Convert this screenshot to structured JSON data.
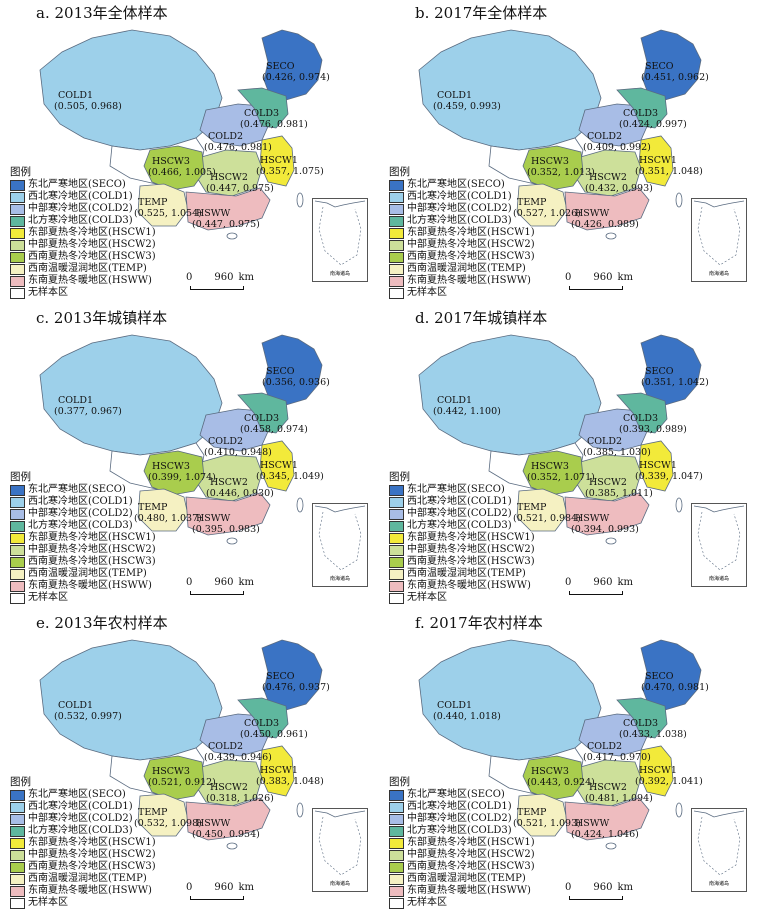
{
  "legend_title": "图例",
  "legend_items": [
    {
      "code": "SECO",
      "label": "东北严寒地区(SECO)",
      "color": "#3a73c4"
    },
    {
      "code": "COLD1",
      "label": "西北寒冷地区(COLD1)",
      "color": "#9dd0ea"
    },
    {
      "code": "COLD2",
      "label": "中部寒冷地区(COLD2)",
      "color": "#a8bde6"
    },
    {
      "code": "COLD3",
      "label": "北方寒冷地区(COLD3)",
      "color": "#5fb79e"
    },
    {
      "code": "HSCW1",
      "label": "东部夏热冬冷地区(HSCW1)",
      "color": "#f2ea3a"
    },
    {
      "code": "HSCW2",
      "label": "中部夏热冬冷地区(HSCW2)",
      "color": "#cde09a"
    },
    {
      "code": "HSCW3",
      "label": "西南夏热冬冷地区(HSCW3)",
      "color": "#a9cd4d"
    },
    {
      "code": "TEMP",
      "label": "西南温暖湿润地区(TEMP)",
      "color": "#f5f1c2"
    },
    {
      "code": "HSWW",
      "label": "东南夏热冬暖地区(HSWW)",
      "color": "#eebcbf"
    },
    {
      "code": "NONE",
      "label": "无样本区",
      "color": "#ffffff"
    }
  ],
  "scale": {
    "zero": "0",
    "distance": "960",
    "unit": "km"
  },
  "inset_label": "南海诸岛",
  "panels": [
    {
      "title": "a. 2013年全体样本",
      "values": {
        "SECO": "(0.426, 0.974)",
        "COLD1": "(0.505, 0.968)",
        "COLD2": "(0.476, 0.981)",
        "COLD3": "(0.476, 0.981)",
        "HSCW1": "(0.357, 1.075)",
        "HSCW2": "(0.447, 0.975)",
        "HSCW3": "(0.466, 1.005)",
        "TEMP": "(0.525, 1.054)",
        "HSWW": "(0.447, 0.975)"
      }
    },
    {
      "title": "b. 2017年全体样本",
      "values": {
        "SECO": "(0.451, 0.962)",
        "COLD1": "(0.459, 0.993)",
        "COLD2": "(0.409, 0.992)",
        "COLD3": "(0.424, 0.997)",
        "HSCW1": "(0.351, 1.048)",
        "HSCW2": "(0.432, 0.993)",
        "HSCW3": "(0.352, 1.013)",
        "TEMP": "(0.527, 1.026)",
        "HSWW": "(0.426, 0.989)"
      }
    },
    {
      "title": "c. 2013年城镇样本",
      "values": {
        "SECO": "(0.356, 0.936)",
        "COLD1": "(0.377, 0.967)",
        "COLD2": "(0.410, 0.948)",
        "COLD3": "(0.458, 0.974)",
        "HSCW1": "(0.345, 1.049)",
        "HSCW2": "(0.446, 0.930)",
        "HSCW3": "(0.399, 1.074)",
        "TEMP": "(0.480, 1.037)",
        "HSWW": "(0.395, 0.983)"
      }
    },
    {
      "title": "d. 2017年城镇样本",
      "values": {
        "SECO": "(0.351, 1.042)",
        "COLD1": "(0.442, 1.100)",
        "COLD2": "(0.385, 1.030)",
        "COLD3": "(0.393, 0.989)",
        "HSCW1": "(0.339, 1.047)",
        "HSCW2": "(0.385, 1.011)",
        "HSCW3": "(0.352, 1.071)",
        "TEMP": "(0.521, 0.984)",
        "HSWW": "(0.394, 0.993)"
      }
    },
    {
      "title": "e. 2013年农村样本",
      "values": {
        "SECO": "(0.476, 0.937)",
        "COLD1": "(0.532, 0.997)",
        "COLD2": "(0.439, 0.946)",
        "COLD3": "(0.450, 0.961)",
        "HSCW1": "(0.383, 1.048)",
        "HSCW2": "(0.318, 1.026)",
        "HSCW3": "(0.521, 0.912)",
        "TEMP": "(0.532, 1.098)",
        "HSWW": "(0.450, 0.954)"
      }
    },
    {
      "title": "f. 2017年农村样本",
      "values": {
        "SECO": "(0.470, 0.981)",
        "COLD1": "(0.440, 1.018)",
        "COLD2": "(0.417, 0.970)",
        "COLD3": "(0.433, 1.038)",
        "HSCW1": "(0.392, 1.041)",
        "HSCW2": "(0.481, 1.094)",
        "HSCW3": "(0.443, 0.924)",
        "TEMP": "(0.521, 1.093)",
        "HSWW": "(0.424, 1.046)"
      }
    }
  ]
}
